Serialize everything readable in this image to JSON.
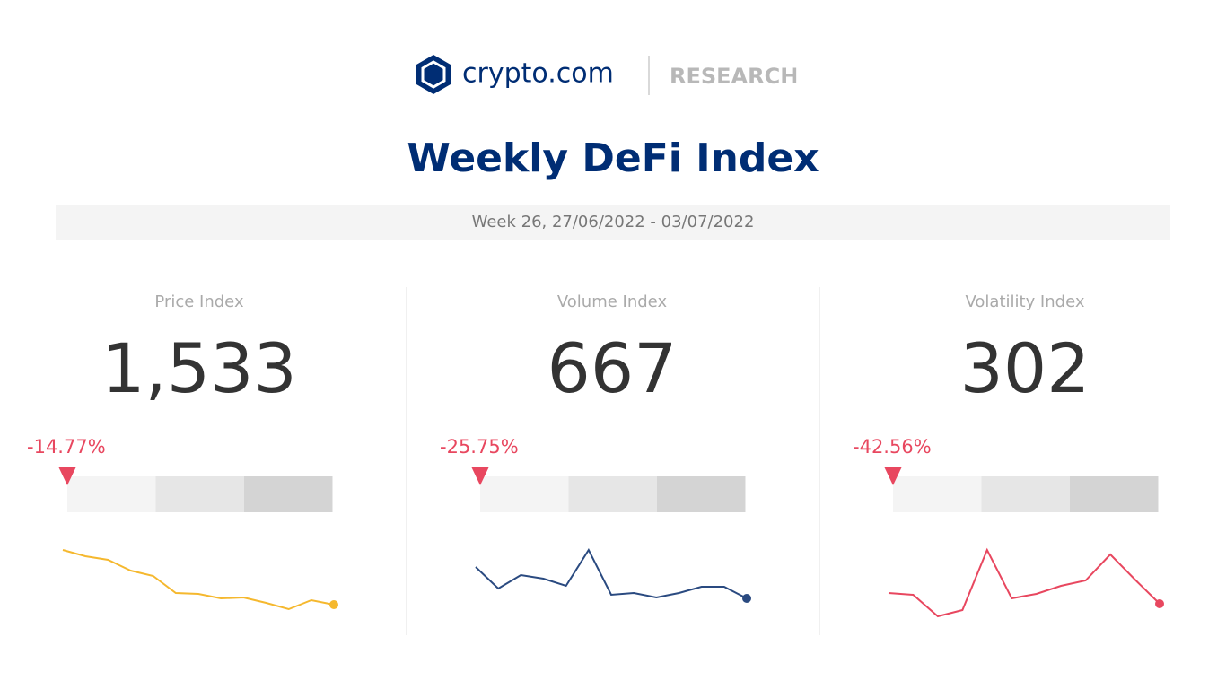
{
  "header": {
    "brand": "crypto.com",
    "section": "RESEARCH",
    "title": "Weekly DeFi Index",
    "period": "Week 26, 27/06/2022 - 03/07/2022"
  },
  "cards": [
    {
      "label": "Price Index",
      "value": "1,533",
      "change": "-14.77%",
      "spark": {
        "color": "#f5b82e",
        "ylim": [
          0,
          100
        ],
        "values": [
          87,
          80,
          76,
          64,
          58,
          39,
          38,
          33,
          34,
          28,
          21,
          31,
          26
        ]
      }
    },
    {
      "label": "Volume Index",
      "value": "667",
      "change": "-25.75%",
      "spark": {
        "color": "#2a4a80",
        "ylim": [
          0,
          100
        ],
        "values": [
          68,
          44,
          59,
          55,
          47,
          87,
          37,
          39,
          34,
          39,
          46,
          46,
          33
        ]
      }
    },
    {
      "label": "Volatility Index",
      "value": "302",
      "change": "-42.56%",
      "spark": {
        "color": "#e8475f",
        "ylim": [
          0,
          100
        ],
        "values": [
          39,
          37,
          13,
          20,
          87,
          33,
          38,
          47,
          53,
          82,
          54,
          27
        ]
      }
    }
  ]
}
